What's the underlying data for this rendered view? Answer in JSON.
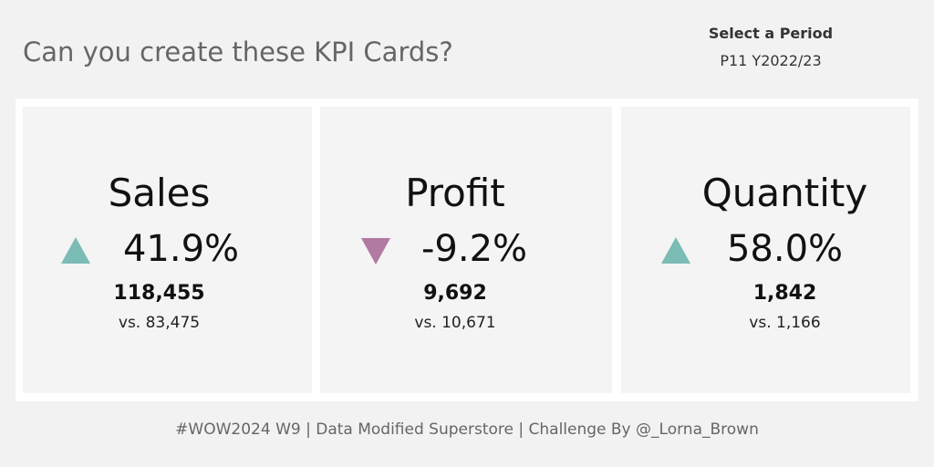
{
  "header": {
    "title": "Can you create these KPI Cards?"
  },
  "period": {
    "label": "Select a Period",
    "value": "P11 Y2022/23"
  },
  "cards": [
    {
      "title": "Sales",
      "change": "41.9%",
      "current": "118,455",
      "previous": "vs. 83,475"
    },
    {
      "title": "Profit",
      "change": "-9.2%",
      "current": "9,692",
      "previous": "vs. 10,671"
    },
    {
      "title": "Quantity",
      "change": "58.0%",
      "current": "1,842",
      "previous": "vs. 1,166"
    }
  ],
  "footer": "#WOW2024 W9 | Data Modified Superstore | Challenge By @_Lorna_Brown"
}
